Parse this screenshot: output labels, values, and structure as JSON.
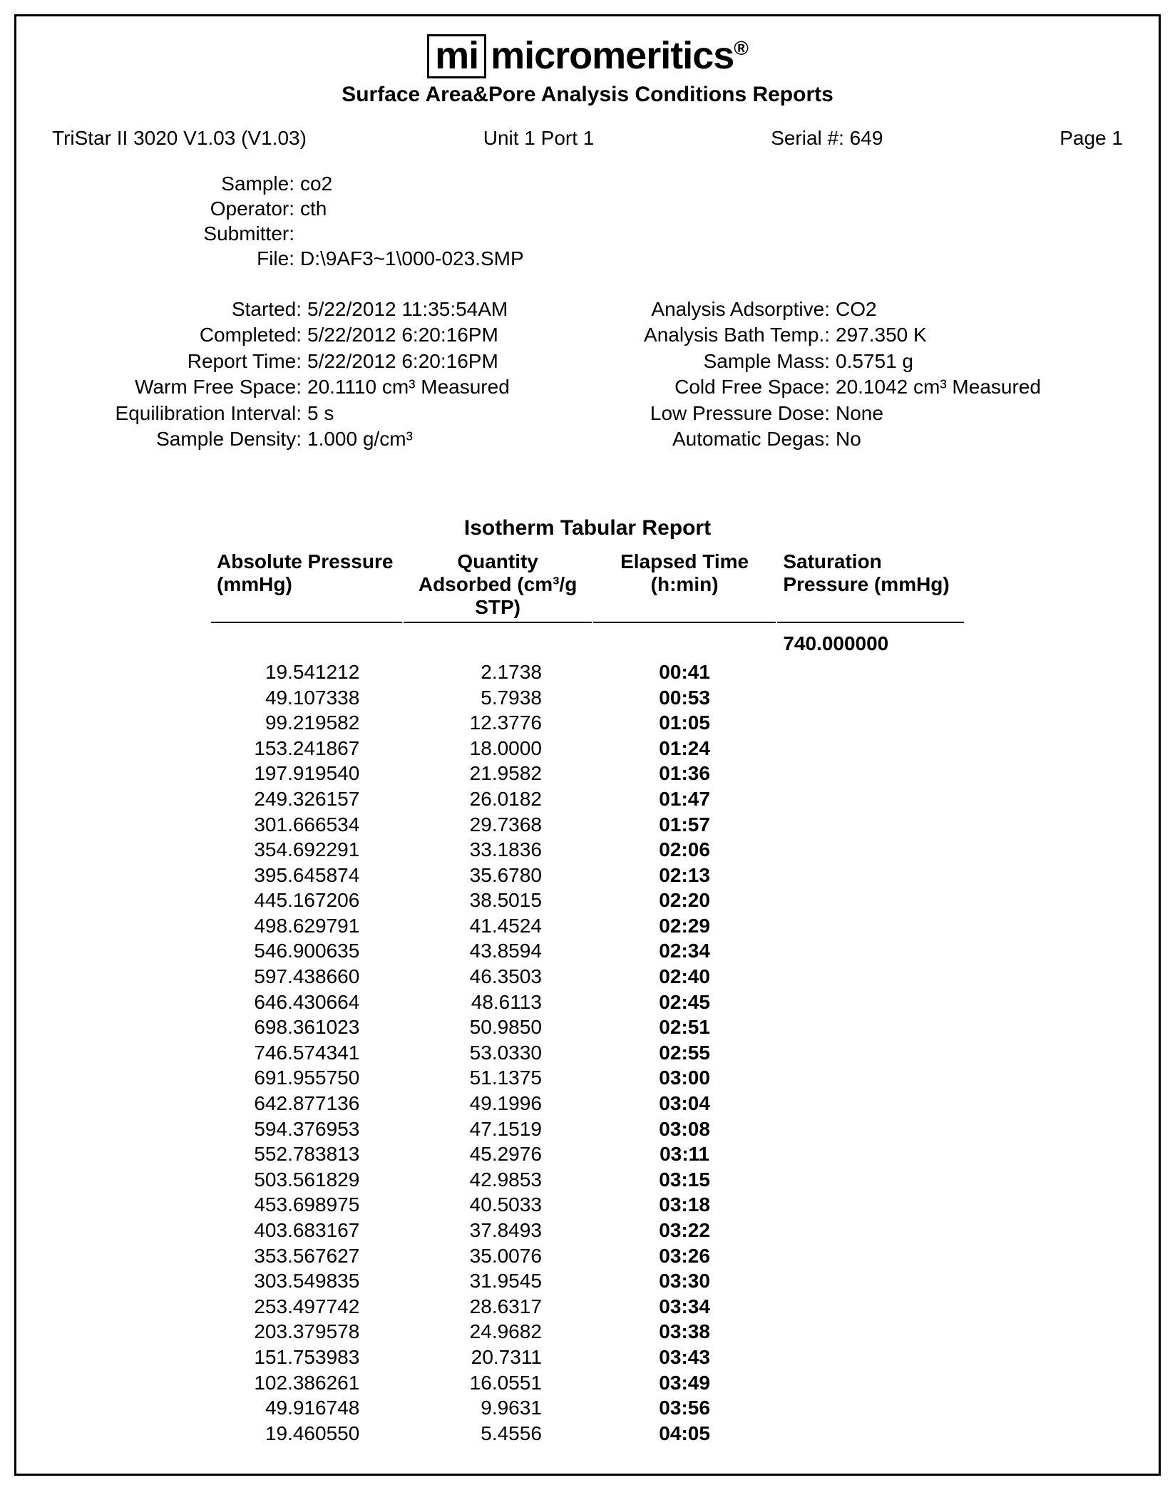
{
  "brand": {
    "logo": "mi",
    "name": "micromeritics",
    "reg": "®"
  },
  "subtitle": "Surface Area&Pore Analysis Conditions Reports",
  "infoline": {
    "instrument": "TriStar II 3020 V1.03 (V1.03)",
    "unitport": "Unit 1  Port 1",
    "serial": "Serial #: 649",
    "page": "Page 1"
  },
  "sample": {
    "labels": {
      "sample": "Sample:",
      "operator": "Operator:",
      "submitter": "Submitter:",
      "file": "File:"
    },
    "sample": "co2",
    "operator": "cth",
    "submitter": "",
    "file": "D:\\9AF3~1\\000-023.SMP"
  },
  "left": {
    "labels": {
      "started": "Started:",
      "completed": "Completed:",
      "report_time": "Report Time:",
      "warm_free_space": "Warm Free Space:",
      "equil_interval": "Equilibration Interval:",
      "sample_density": "Sample Density:"
    },
    "started": "5/22/2012 11:35:54AM",
    "completed": "5/22/2012 6:20:16PM",
    "report_time": "5/22/2012 6:20:16PM",
    "warm_free_space": "20.1110 cm³ Measured",
    "equil_interval": "5 s",
    "sample_density": "1.000 g/cm³"
  },
  "right": {
    "labels": {
      "adsorptive": "Analysis Adsorptive:",
      "bath_temp": "Analysis Bath Temp.:",
      "sample_mass": "Sample Mass:",
      "cold_free_space": "Cold Free Space:",
      "low_pressure_dose": "Low Pressure Dose:",
      "auto_degas": "Automatic Degas:"
    },
    "adsorptive": "CO2",
    "bath_temp": "297.350 K",
    "sample_mass": "0.5751 g",
    "cold_free_space": "20.1042 cm³ Measured",
    "low_pressure_dose": "None",
    "auto_degas": "No"
  },
  "table": {
    "title": "Isotherm Tabular Report",
    "headers": {
      "c1": "Absolute\nPressure\n(mmHg)",
      "c2": "Quantity\nAdsorbed\n(cm³/g STP)",
      "c3": "Elapsed Time\n(h:min)",
      "c4": "Saturation\nPressure\n(mmHg)"
    },
    "saturation_pressure": "740.000000",
    "rows": [
      {
        "p": "19.541212",
        "q": "2.1738",
        "t": "00:41"
      },
      {
        "p": "49.107338",
        "q": "5.7938",
        "t": "00:53"
      },
      {
        "p": "99.219582",
        "q": "12.3776",
        "t": "01:05"
      },
      {
        "p": "153.241867",
        "q": "18.0000",
        "t": "01:24"
      },
      {
        "p": "197.919540",
        "q": "21.9582",
        "t": "01:36"
      },
      {
        "p": "249.326157",
        "q": "26.0182",
        "t": "01:47"
      },
      {
        "p": "301.666534",
        "q": "29.7368",
        "t": "01:57"
      },
      {
        "p": "354.692291",
        "q": "33.1836",
        "t": "02:06"
      },
      {
        "p": "395.645874",
        "q": "35.6780",
        "t": "02:13"
      },
      {
        "p": "445.167206",
        "q": "38.5015",
        "t": "02:20"
      },
      {
        "p": "498.629791",
        "q": "41.4524",
        "t": "02:29"
      },
      {
        "p": "546.900635",
        "q": "43.8594",
        "t": "02:34"
      },
      {
        "p": "597.438660",
        "q": "46.3503",
        "t": "02:40"
      },
      {
        "p": "646.430664",
        "q": "48.6113",
        "t": "02:45"
      },
      {
        "p": "698.361023",
        "q": "50.9850",
        "t": "02:51"
      },
      {
        "p": "746.574341",
        "q": "53.0330",
        "t": "02:55"
      },
      {
        "p": "691.955750",
        "q": "51.1375",
        "t": "03:00"
      },
      {
        "p": "642.877136",
        "q": "49.1996",
        "t": "03:04"
      },
      {
        "p": "594.376953",
        "q": "47.1519",
        "t": "03:08"
      },
      {
        "p": "552.783813",
        "q": "45.2976",
        "t": "03:11"
      },
      {
        "p": "503.561829",
        "q": "42.9853",
        "t": "03:15"
      },
      {
        "p": "453.698975",
        "q": "40.5033",
        "t": "03:18"
      },
      {
        "p": "403.683167",
        "q": "37.8493",
        "t": "03:22"
      },
      {
        "p": "353.567627",
        "q": "35.0076",
        "t": "03:26"
      },
      {
        "p": "303.549835",
        "q": "31.9545",
        "t": "03:30"
      },
      {
        "p": "253.497742",
        "q": "28.6317",
        "t": "03:34"
      },
      {
        "p": "203.379578",
        "q": "24.9682",
        "t": "03:38"
      },
      {
        "p": "151.753983",
        "q": "20.7311",
        "t": "03:43"
      },
      {
        "p": "102.386261",
        "q": "16.0551",
        "t": "03:49"
      },
      {
        "p": "49.916748",
        "q": "9.9631",
        "t": "03:56"
      },
      {
        "p": "19.460550",
        "q": "5.4556",
        "t": "04:05"
      }
    ]
  }
}
